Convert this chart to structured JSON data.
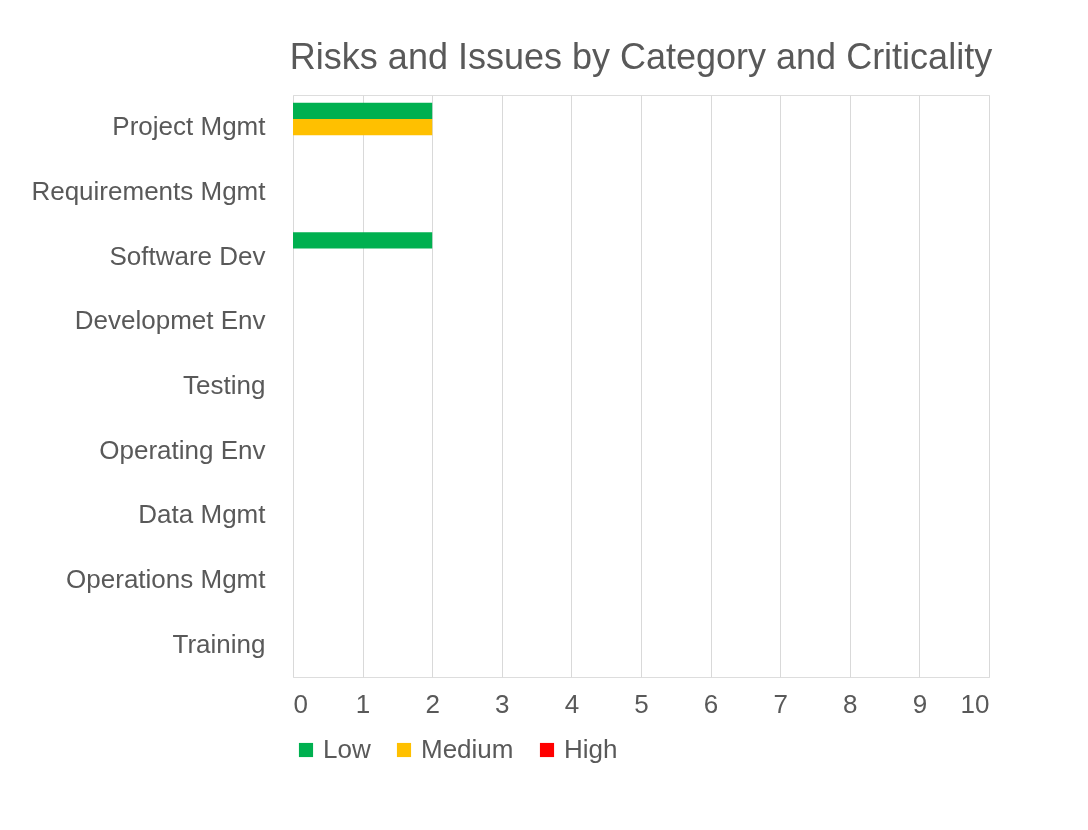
{
  "chart_data": {
    "type": "bar",
    "orientation": "horizontal",
    "title": "Risks and Issues by Category and Criticality",
    "categories": [
      "Project Mgmt",
      "Requirements Mgmt",
      "Software Dev",
      "Developmet Env",
      "Testing",
      "Operating Env",
      "Data Mgmt",
      "Operations Mgmt",
      "Training"
    ],
    "series": [
      {
        "name": "Low",
        "color": "#00b050",
        "values": [
          2,
          0,
          2,
          0,
          0,
          0,
          0,
          0,
          0
        ]
      },
      {
        "name": "Medium",
        "color": "#ffc000",
        "values": [
          2,
          0,
          0,
          0,
          0,
          0,
          0,
          0,
          0
        ]
      },
      {
        "name": "High",
        "color": "#ff0000",
        "values": [
          0,
          0,
          0,
          0,
          0,
          0,
          0,
          0,
          0
        ]
      }
    ],
    "xlim": [
      0,
      10
    ],
    "xticks": [
      0,
      1,
      2,
      3,
      4,
      5,
      6,
      7,
      8,
      9,
      10
    ],
    "grid": "x",
    "legend": "bottom"
  }
}
